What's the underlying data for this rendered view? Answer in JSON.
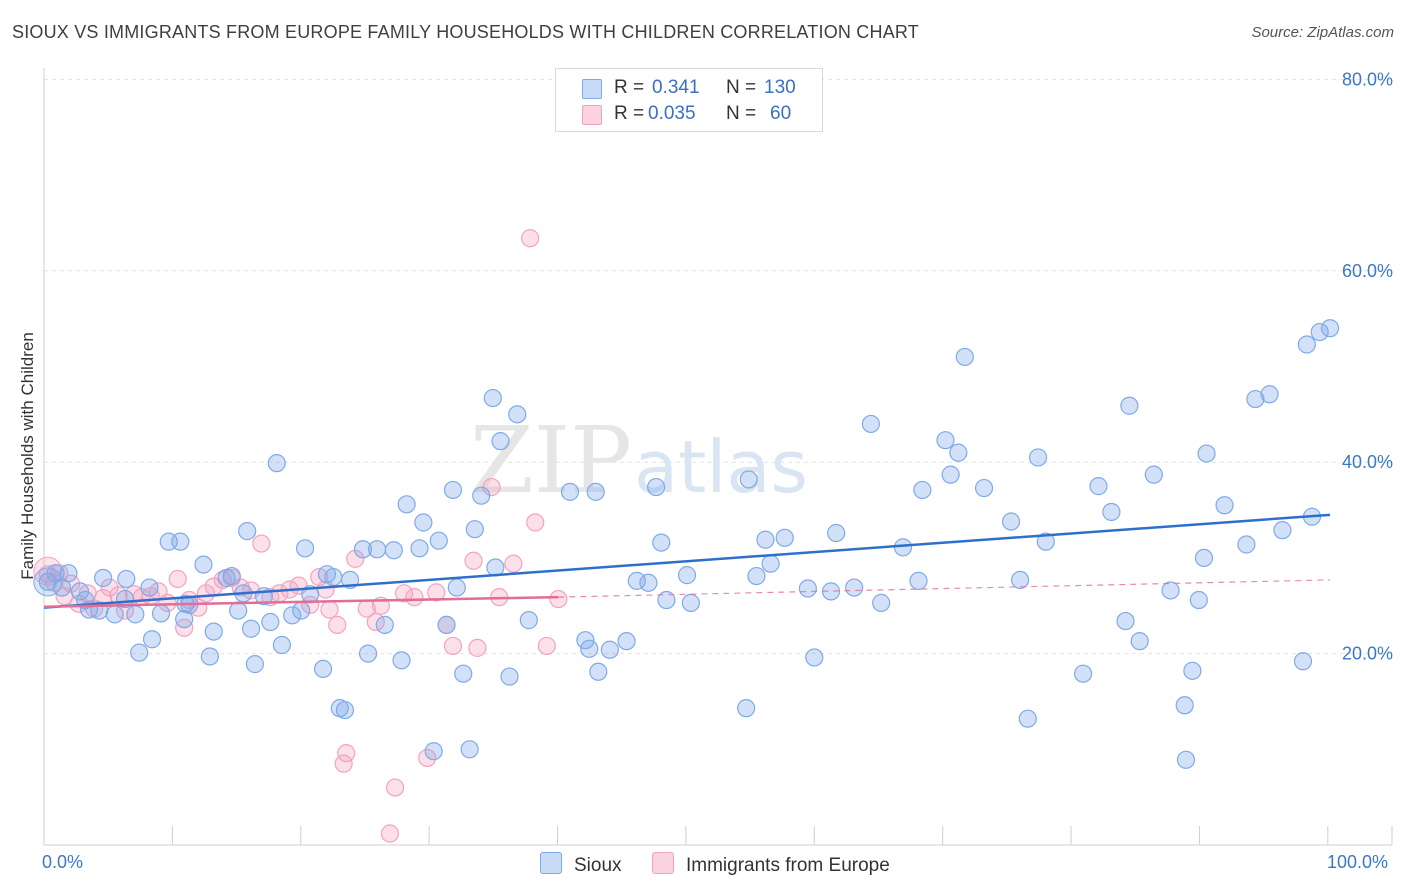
{
  "header": {
    "title": "SIOUX VS IMMIGRANTS FROM EUROPE FAMILY HOUSEHOLDS WITH CHILDREN CORRELATION CHART",
    "source": "Source: ZipAtlas.com"
  },
  "watermark": {
    "part1": "ZIP",
    "part2": "atlas"
  },
  "colors": {
    "sioux": "#7faae8",
    "sioux_line": "#2f6fcc",
    "europe": "#f4a3bf",
    "europe_line": "#e06e98",
    "axis_text": "#3b78c9"
  },
  "legend": {
    "r_label": "R =",
    "n_label": "N =",
    "sioux": {
      "r": "0.341",
      "n": "130"
    },
    "europe": {
      "r": "0.035",
      "n": "60"
    }
  },
  "bottom_legend": {
    "sioux": "Sioux",
    "europe": "Immigrants from Europe"
  },
  "chart_data": {
    "type": "scatter",
    "title": "SIOUX VS IMMIGRANTS FROM EUROPE FAMILY HOUSEHOLDS WITH CHILDREN CORRELATION CHART",
    "xlabel": "",
    "ylabel": "Family Households with Children",
    "xlim": [
      0,
      100
    ],
    "ylim": [
      0,
      80
    ],
    "x_tick_labels": [
      "0.0%",
      "100.0%"
    ],
    "y_ticks": [
      20,
      40,
      60,
      80
    ],
    "y_tick_labels": [
      "20.0%",
      "40.0%",
      "60.0%",
      "80.0%"
    ],
    "grid": true,
    "legend_position": "top-center",
    "series": [
      {
        "name": "Sioux",
        "r": 0.341,
        "n": 130,
        "trend": {
          "x": [
            0,
            100
          ],
          "y": [
            24.8,
            34.5
          ],
          "dashed_after": null
        },
        "points": [
          [
            0.3,
            27.5
          ],
          [
            0.9,
            28.4
          ],
          [
            1.4,
            26.9
          ],
          [
            1.9,
            28.4
          ],
          [
            2.8,
            26.5
          ],
          [
            3.2,
            25.6
          ],
          [
            3.5,
            24.6
          ],
          [
            4.3,
            24.5
          ],
          [
            4.6,
            27.9
          ],
          [
            5.5,
            24.1
          ],
          [
            6.3,
            25.7
          ],
          [
            6.4,
            27.8
          ],
          [
            7.1,
            24.1
          ],
          [
            7.4,
            20.1
          ],
          [
            8.2,
            26.9
          ],
          [
            8.4,
            21.5
          ],
          [
            9.1,
            24.2
          ],
          [
            9.7,
            31.7
          ],
          [
            10.6,
            31.7
          ],
          [
            10.9,
            23.6
          ],
          [
            11.0,
            25.2
          ],
          [
            11.3,
            25.1
          ],
          [
            12.4,
            29.3
          ],
          [
            12.9,
            19.7
          ],
          [
            13.2,
            22.3
          ],
          [
            14.2,
            27.9
          ],
          [
            14.6,
            28.1
          ],
          [
            15.1,
            24.5
          ],
          [
            15.5,
            26.3
          ],
          [
            15.8,
            32.8
          ],
          [
            16.1,
            22.6
          ],
          [
            16.4,
            18.9
          ],
          [
            17.1,
            26.0
          ],
          [
            17.6,
            23.3
          ],
          [
            18.1,
            39.9
          ],
          [
            18.5,
            20.9
          ],
          [
            19.3,
            24.0
          ],
          [
            20.0,
            24.5
          ],
          [
            20.3,
            31.0
          ],
          [
            20.7,
            26.2
          ],
          [
            21.7,
            18.4
          ],
          [
            22.0,
            28.3
          ],
          [
            22.5,
            28.0
          ],
          [
            23.0,
            14.3
          ],
          [
            23.4,
            14.1
          ],
          [
            23.8,
            27.7
          ],
          [
            24.8,
            30.9
          ],
          [
            25.2,
            20.0
          ],
          [
            25.9,
            30.9
          ],
          [
            26.5,
            23.0
          ],
          [
            27.2,
            30.8
          ],
          [
            27.8,
            19.3
          ],
          [
            28.2,
            35.6
          ],
          [
            29.2,
            31.0
          ],
          [
            29.5,
            33.7
          ],
          [
            30.3,
            9.8
          ],
          [
            30.7,
            31.8
          ],
          [
            31.3,
            23.0
          ],
          [
            31.8,
            37.1
          ],
          [
            32.1,
            26.9
          ],
          [
            32.6,
            17.9
          ],
          [
            33.1,
            10.0
          ],
          [
            33.5,
            33.0
          ],
          [
            34.0,
            36.5
          ],
          [
            34.9,
            46.7
          ],
          [
            35.1,
            29.0
          ],
          [
            35.5,
            42.2
          ],
          [
            36.2,
            17.6
          ],
          [
            36.8,
            45.0
          ],
          [
            37.7,
            23.5
          ],
          [
            40.9,
            36.9
          ],
          [
            42.1,
            21.4
          ],
          [
            42.4,
            20.5
          ],
          [
            42.9,
            36.9
          ],
          [
            43.1,
            18.1
          ],
          [
            44.0,
            20.4
          ],
          [
            45.3,
            21.3
          ],
          [
            46.1,
            27.6
          ],
          [
            47.0,
            27.4
          ],
          [
            47.6,
            37.4
          ],
          [
            48.0,
            31.6
          ],
          [
            48.4,
            25.6
          ],
          [
            50.0,
            28.2
          ],
          [
            50.3,
            25.3
          ],
          [
            54.6,
            14.3
          ],
          [
            54.8,
            38.2
          ],
          [
            55.4,
            28.1
          ],
          [
            56.1,
            31.9
          ],
          [
            56.5,
            29.4
          ],
          [
            57.6,
            32.1
          ],
          [
            59.4,
            26.8
          ],
          [
            59.9,
            19.6
          ],
          [
            61.2,
            26.5
          ],
          [
            61.6,
            32.6
          ],
          [
            63.0,
            26.9
          ],
          [
            64.3,
            44.0
          ],
          [
            65.1,
            25.3
          ],
          [
            66.8,
            31.1
          ],
          [
            68.0,
            27.6
          ],
          [
            68.3,
            37.1
          ],
          [
            70.1,
            42.3
          ],
          [
            70.5,
            38.7
          ],
          [
            71.1,
            41.0
          ],
          [
            71.6,
            51.0
          ],
          [
            73.1,
            37.3
          ],
          [
            75.2,
            33.8
          ],
          [
            75.9,
            27.7
          ],
          [
            76.5,
            13.2
          ],
          [
            77.3,
            40.5
          ],
          [
            77.9,
            31.7
          ],
          [
            80.8,
            17.9
          ],
          [
            82.0,
            37.5
          ],
          [
            83.0,
            34.8
          ],
          [
            84.1,
            23.4
          ],
          [
            84.4,
            45.9
          ],
          [
            85.2,
            21.3
          ],
          [
            86.3,
            38.7
          ],
          [
            87.6,
            26.6
          ],
          [
            88.7,
            14.6
          ],
          [
            88.8,
            8.9
          ],
          [
            89.3,
            18.2
          ],
          [
            89.8,
            25.6
          ],
          [
            90.2,
            30.0
          ],
          [
            90.4,
            40.9
          ],
          [
            91.8,
            35.5
          ],
          [
            93.5,
            31.4
          ],
          [
            94.2,
            46.6
          ],
          [
            95.3,
            47.1
          ],
          [
            96.3,
            32.9
          ],
          [
            97.9,
            19.2
          ],
          [
            98.2,
            52.3
          ],
          [
            98.6,
            34.3
          ],
          [
            99.2,
            53.6
          ],
          [
            100.0,
            54.0
          ]
        ]
      },
      {
        "name": "Immigrants from Europe",
        "r": 0.035,
        "n": 60,
        "trend": {
          "x": [
            0,
            40
          ],
          "y": [
            24.9,
            25.9
          ],
          "dashed_extension": {
            "x": [
              40,
              100
            ],
            "y": [
              25.9,
              27.7
            ]
          }
        },
        "points": [
          [
            0.3,
            28.3
          ],
          [
            0.8,
            27.4
          ],
          [
            1.2,
            28.4
          ],
          [
            1.6,
            26.0
          ],
          [
            2.1,
            27.3
          ],
          [
            2.7,
            25.2
          ],
          [
            3.4,
            26.3
          ],
          [
            3.9,
            24.7
          ],
          [
            4.6,
            25.8
          ],
          [
            5.1,
            26.9
          ],
          [
            5.8,
            26.1
          ],
          [
            6.3,
            24.5
          ],
          [
            7.0,
            26.2
          ],
          [
            7.6,
            25.9
          ],
          [
            8.3,
            26.0
          ],
          [
            8.9,
            26.5
          ],
          [
            9.6,
            25.3
          ],
          [
            10.4,
            27.8
          ],
          [
            10.9,
            22.7
          ],
          [
            11.3,
            25.6
          ],
          [
            12.0,
            24.8
          ],
          [
            12.6,
            26.3
          ],
          [
            13.2,
            27.0
          ],
          [
            13.9,
            27.7
          ],
          [
            14.6,
            27.9
          ],
          [
            15.3,
            26.9
          ],
          [
            16.1,
            26.6
          ],
          [
            16.9,
            31.5
          ],
          [
            17.6,
            25.9
          ],
          [
            18.3,
            26.3
          ],
          [
            19.1,
            26.7
          ],
          [
            19.8,
            27.1
          ],
          [
            20.7,
            25.1
          ],
          [
            21.4,
            28.0
          ],
          [
            21.9,
            26.7
          ],
          [
            22.2,
            24.6
          ],
          [
            22.8,
            23.0
          ],
          [
            23.3,
            8.5
          ],
          [
            23.5,
            9.6
          ],
          [
            24.2,
            29.9
          ],
          [
            25.1,
            24.7
          ],
          [
            25.8,
            23.3
          ],
          [
            26.2,
            25.0
          ],
          [
            26.9,
            1.2
          ],
          [
            27.3,
            6.0
          ],
          [
            28.0,
            26.3
          ],
          [
            28.8,
            25.9
          ],
          [
            29.8,
            9.1
          ],
          [
            30.5,
            26.4
          ],
          [
            31.3,
            23.0
          ],
          [
            31.8,
            20.8
          ],
          [
            33.4,
            29.7
          ],
          [
            33.7,
            20.6
          ],
          [
            34.8,
            37.4
          ],
          [
            35.4,
            25.9
          ],
          [
            36.5,
            29.4
          ],
          [
            37.8,
            63.4
          ],
          [
            38.2,
            33.7
          ],
          [
            39.1,
            20.8
          ],
          [
            40.0,
            25.7
          ]
        ]
      }
    ]
  }
}
